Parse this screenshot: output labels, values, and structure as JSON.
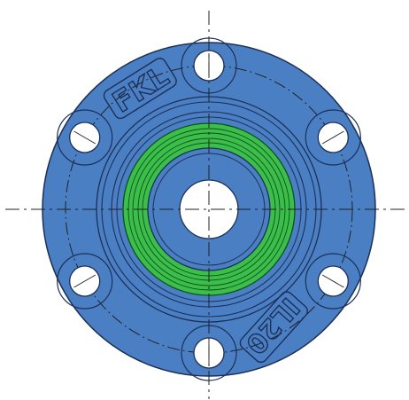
{
  "drawing": {
    "brand_label": "FKL",
    "code_label": "IL20",
    "colors": {
      "housing": "#4b7fc4",
      "housing_outline": "#1c2f56",
      "seal_ring": "#3bbf4a",
      "seal_outline": "#0f4f1c",
      "bore": "#ffffff",
      "centerline": "#222222",
      "background": "#ffffff"
    },
    "bolt_hole_count": 6
  }
}
